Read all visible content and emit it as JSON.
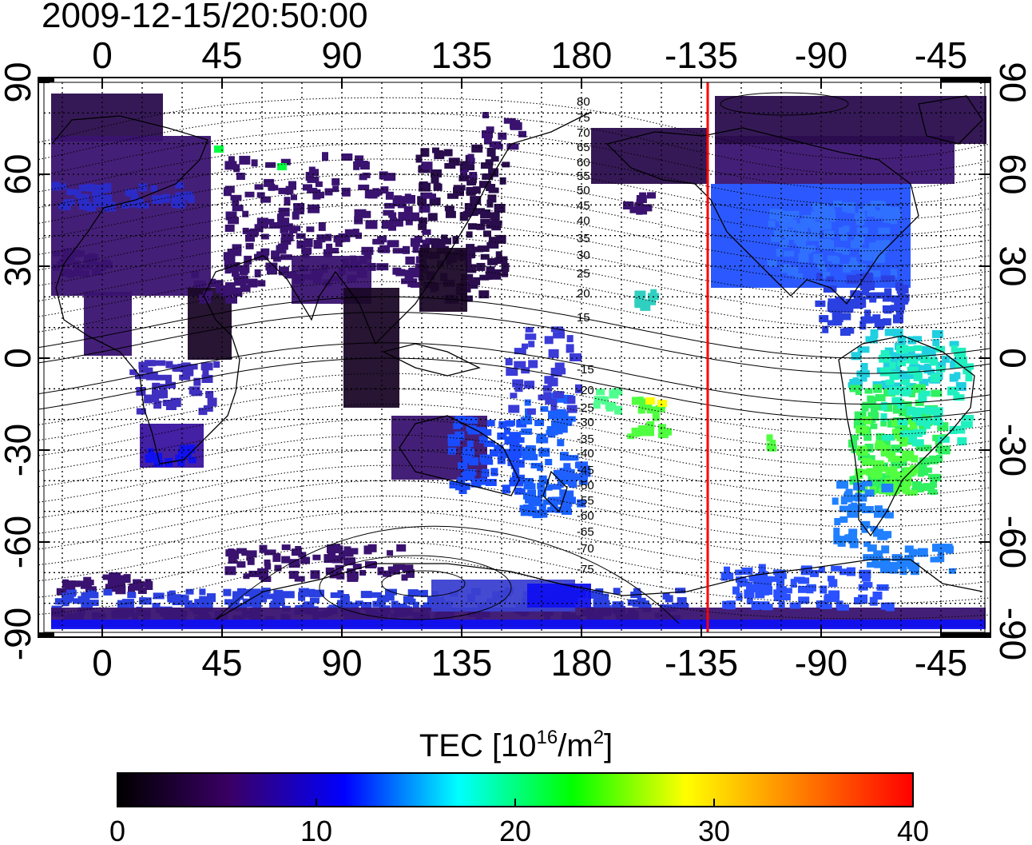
{
  "title": "2009-12-15/20:50:00",
  "lon_ticks_top": [
    "0",
    "45",
    "90",
    "135",
    "180",
    "-135",
    "-90",
    "-45"
  ],
  "lon_ticks_bottom": [
    "0",
    "45",
    "90",
    "135",
    "180",
    "-135",
    "-90",
    "-45"
  ],
  "lat_ticks_left": [
    "90",
    "60",
    "30",
    "0",
    "-30",
    "-60",
    "-90"
  ],
  "lat_ticks_right": [
    "90",
    "60",
    "30",
    "0",
    "-30",
    "-60",
    "-90"
  ],
  "contour_labels_north": [
    "80",
    "75",
    "70",
    "65",
    "60",
    "55",
    "50",
    "45",
    "40",
    "35",
    "30",
    "25",
    "20",
    "15"
  ],
  "contour_labels_south": [
    "-15",
    "-20",
    "-25",
    "-30",
    "-35",
    "-40",
    "-45",
    "-50",
    "-55",
    "-60",
    "-65",
    "-70",
    "-75"
  ],
  "terminator_color": "#ff0000",
  "colorbar": {
    "label_main": "TEC  [10",
    "label_sup1": "16",
    "label_mid": "/m",
    "label_sup2": "2",
    "label_end": "]",
    "ticks": [
      "0",
      "10",
      "20",
      "30",
      "40"
    ],
    "colors": [
      "#000000",
      "#3a0066",
      "#0000ff",
      "#00ffff",
      "#00ff00",
      "#ffff00",
      "#ff7f00",
      "#ff0000"
    ]
  }
}
